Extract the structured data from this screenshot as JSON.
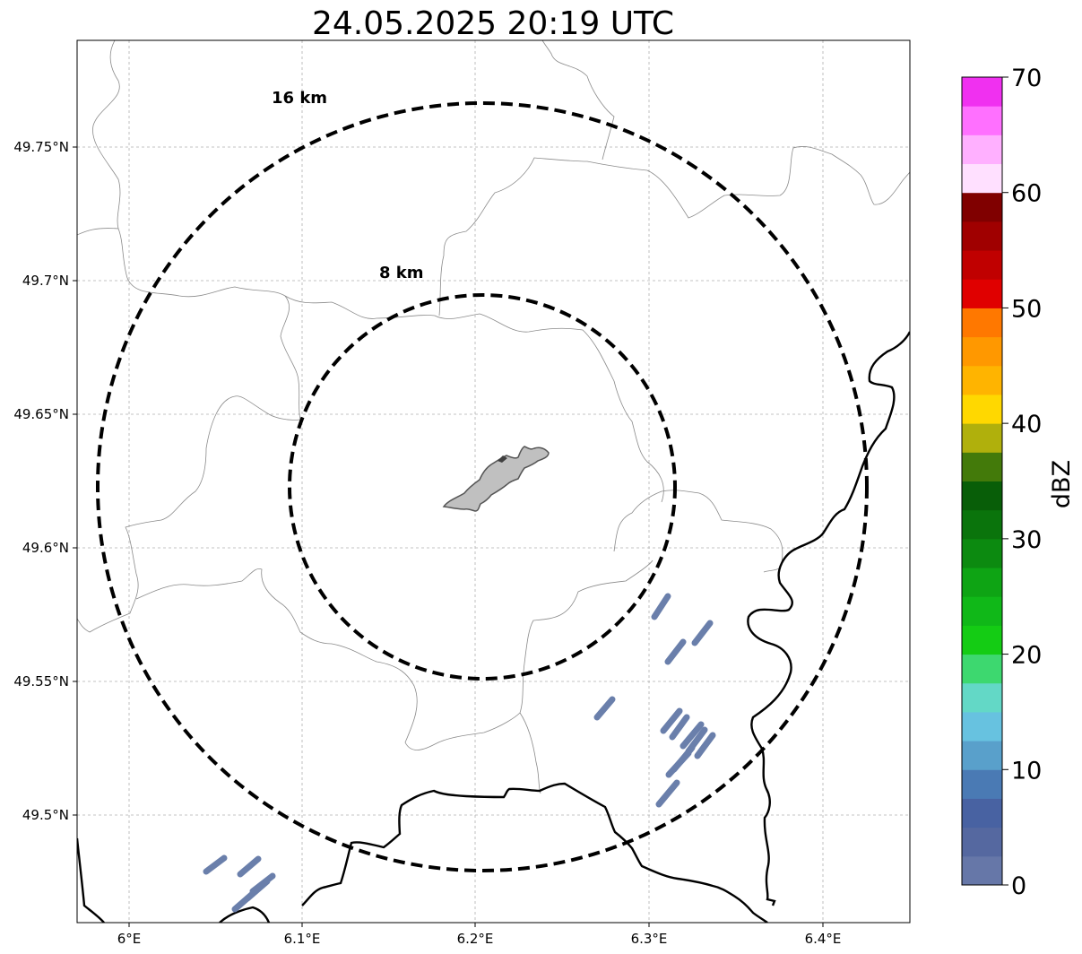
{
  "title": "24.05.2025 20:19 UTC",
  "map": {
    "x_ticks": [
      "6°E",
      "6.1°E",
      "6.2°E",
      "6.3°E",
      "6.4°E"
    ],
    "y_ticks": [
      "49.75°N",
      "49.7°N",
      "49.65°N",
      "49.6°N",
      "49.55°N",
      "49.5°N"
    ],
    "range_rings": [
      {
        "label": "16 km"
      },
      {
        "label": "8 km"
      }
    ],
    "city_fill": "#c0c0c0",
    "echo_color": "#6a7fab"
  },
  "colorbar": {
    "label": "dBZ",
    "ticks": [
      "0",
      "10",
      "20",
      "30",
      "40",
      "50",
      "60",
      "70"
    ],
    "colors": [
      "#6677a8",
      "#5568a0",
      "#4862a2",
      "#4a7ab4",
      "#59a0cb",
      "#67c2e0",
      "#63d8c6",
      "#3dd86f",
      "#14cc14",
      "#10b818",
      "#0ea414",
      "#0c8a10",
      "#0a740c",
      "#085e08",
      "#437a0a",
      "#b0b00c",
      "#ffd800",
      "#ffb400",
      "#ff9800",
      "#ff7800",
      "#e00000",
      "#c00000",
      "#a00000",
      "#800000",
      "#ffe0ff",
      "#ffb0ff",
      "#ff70ff",
      "#f030f0"
    ]
  }
}
